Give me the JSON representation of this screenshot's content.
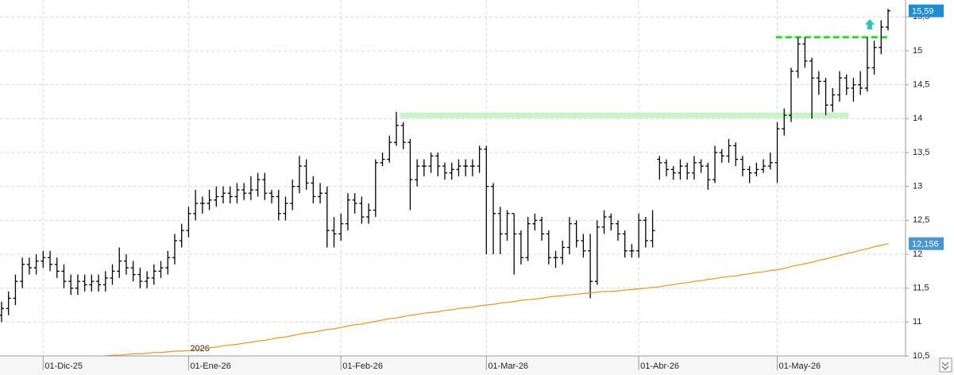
{
  "chart_data": {
    "type": "ohlc",
    "year_label": "2026",
    "categories": [
      null,
      null,
      null,
      null,
      null,
      null,
      "01-Dic-25",
      null,
      null,
      null,
      null,
      null,
      null,
      null,
      null,
      null,
      null,
      null,
      null,
      null,
      null,
      null,
      null,
      null,
      null,
      null,
      null,
      "01-Ene-26",
      null,
      null,
      null,
      null,
      null,
      null,
      null,
      null,
      null,
      null,
      null,
      null,
      null,
      null,
      null,
      null,
      null,
      null,
      null,
      null,
      null,
      "01-Feb-26",
      null,
      null,
      null,
      null,
      null,
      null,
      null,
      null,
      null,
      null,
      null,
      null,
      null,
      null,
      null,
      null,
      null,
      null,
      null,
      null,
      "01-Mar-26",
      null,
      null,
      null,
      null,
      null,
      null,
      null,
      null,
      null,
      null,
      null,
      null,
      null,
      null,
      null,
      null,
      null,
      null,
      null,
      null,
      null,
      "01-Abr-26",
      null,
      null,
      null,
      null,
      null,
      null,
      null,
      null,
      null,
      null,
      null,
      null,
      null,
      null,
      null,
      null,
      null,
      null,
      null,
      "01-May-26",
      null,
      null,
      null,
      null,
      null,
      null,
      null,
      null,
      null,
      null,
      null,
      null,
      null,
      null,
      null,
      null
    ],
    "series": [
      {
        "type": "ohlc",
        "color": "#000000",
        "label_color": "#1f8dd6",
        "open": [
          11.1,
          11.2,
          11.35,
          11.6,
          11.85,
          11.8,
          11.9,
          11.95,
          11.85,
          11.75,
          11.6,
          11.5,
          11.6,
          11.55,
          11.6,
          11.55,
          11.65,
          11.75,
          11.9,
          11.8,
          11.7,
          11.6,
          11.65,
          11.75,
          11.8,
          11.95,
          12.2,
          12.35,
          12.6,
          12.75,
          12.75,
          12.8,
          12.85,
          12.9,
          12.85,
          12.95,
          12.9,
          12.95,
          13.1,
          12.9,
          12.85,
          12.6,
          12.75,
          13.0,
          13.3,
          13.05,
          12.85,
          12.9,
          12.35,
          12.3,
          12.45,
          12.8,
          12.75,
          12.55,
          12.65,
          13.35,
          13.4,
          13.65,
          13.9,
          13.65,
          13.1,
          13.3,
          13.3,
          13.45,
          13.3,
          13.2,
          13.25,
          13.3,
          13.3,
          13.3,
          13.55,
          13.0,
          12.6,
          12.3,
          12.6,
          12.3,
          11.95,
          12.45,
          12.5,
          12.3,
          11.95,
          11.95,
          12.1,
          12.45,
          12.2,
          12.05,
          11.6,
          12.4,
          12.55,
          12.45,
          12.3,
          12.05,
          12.05,
          12.5,
          12.2,
          13.4,
          13.35,
          13.25,
          13.2,
          13.3,
          13.2,
          13.35,
          13.3,
          13.1,
          13.5,
          13.45,
          13.6,
          13.4,
          13.25,
          13.2,
          13.25,
          13.3,
          13.35,
          13.85,
          14.05,
          14.7,
          15.1,
          14.85,
          14.6,
          14.55,
          14.2,
          14.35,
          14.6,
          14.45,
          14.5,
          14.45,
          14.75,
          15.05,
          15.35
        ],
        "high": [
          11.3,
          11.45,
          11.7,
          11.95,
          11.95,
          12.0,
          12.05,
          12.05,
          11.95,
          11.85,
          11.7,
          11.7,
          11.7,
          11.7,
          11.7,
          11.75,
          11.85,
          12.1,
          12.0,
          11.9,
          11.8,
          11.75,
          11.85,
          11.9,
          12.05,
          12.3,
          12.45,
          12.7,
          12.95,
          12.85,
          12.95,
          13.0,
          13.0,
          13.0,
          13.05,
          13.05,
          13.15,
          13.2,
          13.2,
          12.95,
          12.95,
          12.85,
          13.1,
          13.45,
          13.4,
          13.15,
          13.05,
          13.0,
          12.55,
          12.6,
          12.9,
          12.9,
          12.85,
          12.75,
          13.4,
          13.5,
          13.75,
          14.1,
          13.95,
          13.7,
          13.4,
          13.4,
          13.5,
          13.5,
          13.35,
          13.35,
          13.4,
          13.4,
          13.4,
          13.6,
          13.6,
          13.05,
          12.7,
          12.65,
          12.6,
          12.35,
          12.55,
          12.6,
          12.55,
          12.35,
          12.05,
          12.2,
          12.55,
          12.5,
          12.3,
          12.3,
          12.5,
          12.65,
          12.6,
          12.5,
          12.35,
          12.15,
          12.6,
          12.55,
          12.65,
          13.45,
          13.4,
          13.3,
          13.4,
          13.35,
          13.45,
          13.4,
          13.35,
          13.6,
          13.55,
          13.7,
          13.65,
          13.45,
          13.3,
          13.35,
          13.4,
          13.5,
          13.95,
          14.15,
          14.75,
          15.2,
          15.2,
          14.9,
          14.7,
          14.6,
          14.45,
          14.7,
          14.65,
          14.6,
          14.7,
          15.2,
          15.15,
          15.45,
          15.62
        ],
        "low": [
          11.0,
          11.1,
          11.25,
          11.5,
          11.7,
          11.7,
          11.8,
          11.75,
          11.65,
          11.5,
          11.4,
          11.4,
          11.45,
          11.45,
          11.45,
          11.45,
          11.55,
          11.65,
          11.7,
          11.6,
          11.5,
          11.5,
          11.55,
          11.65,
          11.7,
          11.85,
          12.1,
          12.25,
          12.5,
          12.6,
          12.65,
          12.7,
          12.75,
          12.75,
          12.75,
          12.8,
          12.8,
          12.85,
          12.8,
          12.75,
          12.5,
          12.5,
          12.65,
          12.9,
          12.95,
          12.75,
          12.75,
          12.1,
          12.1,
          12.2,
          12.35,
          12.6,
          12.45,
          12.45,
          12.55,
          13.3,
          13.35,
          13.6,
          13.55,
          12.65,
          13.0,
          13.15,
          13.2,
          13.15,
          13.1,
          13.1,
          13.15,
          13.15,
          13.15,
          13.2,
          12.0,
          12.0,
          12.0,
          12.2,
          11.7,
          11.85,
          11.9,
          12.35,
          12.2,
          11.85,
          11.8,
          11.85,
          12.0,
          12.1,
          11.95,
          11.35,
          11.55,
          12.3,
          12.35,
          12.2,
          11.95,
          11.95,
          11.95,
          12.1,
          12.1,
          13.1,
          13.15,
          13.1,
          13.1,
          13.1,
          13.1,
          13.2,
          12.95,
          13.05,
          13.35,
          13.35,
          13.3,
          13.15,
          13.05,
          13.15,
          13.2,
          13.25,
          13.05,
          13.75,
          13.95,
          14.6,
          14.75,
          14.0,
          14.35,
          14.05,
          14.1,
          14.25,
          14.35,
          14.25,
          14.35,
          14.4,
          14.65,
          14.95,
          15.3
        ],
        "close": [
          11.2,
          11.35,
          11.6,
          11.85,
          11.8,
          11.9,
          11.95,
          11.85,
          11.75,
          11.6,
          11.5,
          11.6,
          11.55,
          11.6,
          11.55,
          11.65,
          11.75,
          11.9,
          11.8,
          11.7,
          11.6,
          11.65,
          11.75,
          11.8,
          11.95,
          12.2,
          12.35,
          12.6,
          12.75,
          12.75,
          12.8,
          12.85,
          12.9,
          12.85,
          12.95,
          12.9,
          12.95,
          13.1,
          12.9,
          12.85,
          12.6,
          12.75,
          13.0,
          13.3,
          13.05,
          12.85,
          12.9,
          12.35,
          12.3,
          12.45,
          12.8,
          12.75,
          12.55,
          12.65,
          13.35,
          13.4,
          13.65,
          13.9,
          13.65,
          13.1,
          13.3,
          13.3,
          13.45,
          13.3,
          13.2,
          13.25,
          13.3,
          13.3,
          13.3,
          13.55,
          13.0,
          12.6,
          12.3,
          12.6,
          12.3,
          11.95,
          12.45,
          12.5,
          12.3,
          11.95,
          11.95,
          12.1,
          12.45,
          12.2,
          12.05,
          11.6,
          12.4,
          12.55,
          12.45,
          12.3,
          12.05,
          12.05,
          12.5,
          12.2,
          12.35,
          13.35,
          13.25,
          13.2,
          13.3,
          13.2,
          13.35,
          13.3,
          13.1,
          13.5,
          13.45,
          13.6,
          13.4,
          13.25,
          13.2,
          13.25,
          13.3,
          13.35,
          13.85,
          14.05,
          14.7,
          15.1,
          14.85,
          14.6,
          14.55,
          14.2,
          14.35,
          14.6,
          14.45,
          14.5,
          14.45,
          14.75,
          15.05,
          15.35,
          15.59
        ],
        "value_labels": [
          null,
          null,
          null,
          null,
          null,
          null,
          null,
          null,
          null,
          null,
          null,
          null,
          null,
          null,
          null,
          null,
          null,
          null,
          null,
          null,
          null,
          null,
          null,
          null,
          null,
          null,
          null,
          null,
          null,
          null,
          null,
          null,
          null,
          null,
          null,
          null,
          null,
          null,
          null,
          null,
          null,
          null,
          null,
          null,
          null,
          null,
          null,
          null,
          null,
          null,
          null,
          null,
          null,
          null,
          null,
          null,
          null,
          null,
          null,
          null,
          null,
          null,
          null,
          null,
          null,
          null,
          null,
          null,
          null,
          null,
          null,
          null,
          null,
          null,
          null,
          null,
          null,
          null,
          null,
          null,
          null,
          null,
          null,
          null,
          null,
          null,
          null,
          null,
          null,
          null,
          null,
          null,
          null,
          null,
          null,
          null,
          null,
          null,
          null,
          null,
          null,
          null,
          null,
          null,
          null,
          null,
          null,
          null,
          null,
          null,
          null,
          null,
          null,
          null,
          null,
          null,
          null,
          null,
          null,
          null,
          null,
          null,
          null,
          null,
          null,
          null,
          null,
          null,
          "15,59"
        ]
      },
      {
        "type": "line",
        "color": "#e8961e",
        "label_color": "#4a96d2",
        "values": [
          null,
          null,
          null,
          null,
          null,
          null,
          null,
          null,
          null,
          null,
          null,
          null,
          null,
          null,
          null,
          10.5,
          10.51,
          10.51,
          10.52,
          10.53,
          10.53,
          10.54,
          10.55,
          10.55,
          10.56,
          10.57,
          10.57,
          10.58,
          10.59,
          10.61,
          10.62,
          10.63,
          10.65,
          10.66,
          10.67,
          10.69,
          10.7,
          10.72,
          10.73,
          10.75,
          10.77,
          10.78,
          10.8,
          10.82,
          10.84,
          10.85,
          10.87,
          10.89,
          10.9,
          10.92,
          10.94,
          10.96,
          10.97,
          10.99,
          11.01,
          11.03,
          11.05,
          11.06,
          11.08,
          11.1,
          11.11,
          11.13,
          11.14,
          11.15,
          11.17,
          11.18,
          11.2,
          11.21,
          11.22,
          11.24,
          11.25,
          11.26,
          11.28,
          11.29,
          11.3,
          11.32,
          11.33,
          11.34,
          11.35,
          11.37,
          11.38,
          11.39,
          11.4,
          11.41,
          11.42,
          11.43,
          11.44,
          11.45,
          11.45,
          11.46,
          11.47,
          11.48,
          11.49,
          11.5,
          11.51,
          11.52,
          11.54,
          11.55,
          11.57,
          11.58,
          11.6,
          11.61,
          11.63,
          11.64,
          11.66,
          11.67,
          11.68,
          11.7,
          11.71,
          11.73,
          11.74,
          11.76,
          11.77,
          11.79,
          11.82,
          11.84,
          11.86,
          11.88,
          11.91,
          11.93,
          11.96,
          11.98,
          12.01,
          12.03,
          12.06,
          12.08,
          12.11,
          12.13,
          12.156
        ],
        "value_labels": [
          null,
          null,
          null,
          null,
          null,
          null,
          null,
          null,
          null,
          null,
          null,
          null,
          null,
          null,
          null,
          null,
          null,
          null,
          null,
          null,
          null,
          null,
          null,
          null,
          null,
          null,
          null,
          null,
          null,
          null,
          null,
          null,
          null,
          null,
          null,
          null,
          null,
          null,
          null,
          null,
          null,
          null,
          null,
          null,
          null,
          null,
          null,
          null,
          null,
          null,
          null,
          null,
          null,
          null,
          null,
          null,
          null,
          null,
          null,
          null,
          null,
          null,
          null,
          null,
          null,
          null,
          null,
          null,
          null,
          null,
          null,
          null,
          null,
          null,
          null,
          null,
          null,
          null,
          null,
          null,
          null,
          null,
          null,
          null,
          null,
          null,
          null,
          null,
          null,
          null,
          null,
          null,
          null,
          null,
          null,
          null,
          null,
          null,
          null,
          null,
          null,
          null,
          null,
          null,
          null,
          null,
          null,
          null,
          null,
          null,
          null,
          null,
          null,
          null,
          null,
          null,
          null,
          null,
          null,
          null,
          null,
          null,
          null,
          null,
          null,
          null,
          null,
          null,
          "12,156"
        ]
      }
    ],
    "levels": [
      {
        "value": 14.05,
        "color": "#c8f4c8",
        "style": "solid"
      },
      {
        "value": 15.2,
        "color": "#22dd22",
        "style": "dashed"
      }
    ],
    "ylim": [
      10.5,
      15.75
    ],
    "yticks": [
      {
        "value": 10.5,
        "label": "10,5"
      },
      11,
      {
        "value": 11.5,
        "label": "11,5"
      },
      12,
      {
        "value": 12.5,
        "label": "12,5"
      },
      13,
      {
        "value": 13.5,
        "label": "13,5"
      },
      14,
      {
        "value": 14.5,
        "label": "14,5"
      },
      15,
      {
        "value": 15.5,
        "label": "15,5"
      }
    ],
    "grid": true
  }
}
